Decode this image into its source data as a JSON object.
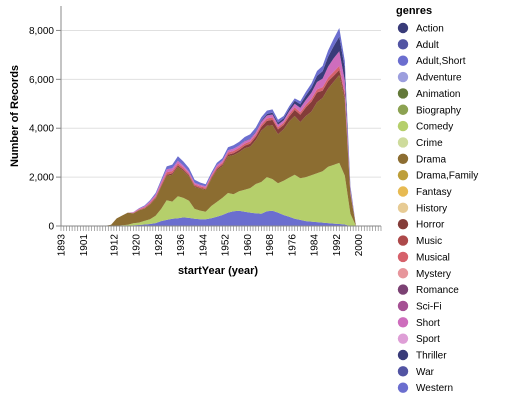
{
  "chart_data": {
    "type": "area",
    "stacked": true,
    "xlabel": "startYear (year)",
    "ylabel": "Number of Records",
    "xlim": [
      1893,
      2008
    ],
    "ylim": [
      0,
      9000
    ],
    "x_ticks": [
      1893,
      1901,
      1912,
      1920,
      1928,
      1936,
      1944,
      1952,
      1960,
      1968,
      1976,
      1984,
      1992,
      2000
    ],
    "y_ticks": [
      0,
      2000,
      4000,
      6000,
      8000
    ],
    "y_tick_labels": [
      "0",
      "2,000",
      "4,000",
      "6,000",
      "8,000"
    ],
    "grid": true,
    "legend_title": "genres",
    "legend_position": "right",
    "x": [
      1893,
      1905,
      1909,
      1911,
      1913,
      1915,
      1917,
      1919,
      1921,
      1923,
      1925,
      1927,
      1929,
      1931,
      1933,
      1935,
      1937,
      1939,
      1941,
      1943,
      1945,
      1947,
      1949,
      1951,
      1953,
      1955,
      1957,
      1959,
      1961,
      1963,
      1965,
      1967,
      1969,
      1971,
      1973,
      1975,
      1977,
      1979,
      1981,
      1983,
      1985,
      1987,
      1989,
      1991,
      1993,
      1995,
      1997,
      1999,
      2001,
      2003
    ],
    "series": [
      {
        "name": "Action",
        "color": "#393b79",
        "values": [
          0,
          0,
          0,
          0,
          0,
          0,
          0,
          0,
          0,
          0,
          0,
          0,
          0,
          0,
          0,
          0,
          0,
          0,
          0,
          0,
          0,
          0,
          0,
          0,
          0,
          0,
          0,
          0,
          0,
          0,
          0,
          0,
          0,
          0,
          0,
          0,
          0,
          0,
          0,
          0,
          0,
          0,
          0,
          0,
          0,
          0,
          0,
          0,
          0,
          0
        ]
      },
      {
        "name": "Adult",
        "color": "#5254a3",
        "values": [
          0,
          0,
          0,
          0,
          0,
          0,
          0,
          0,
          0,
          0,
          0,
          0,
          0,
          0,
          0,
          0,
          0,
          0,
          0,
          0,
          0,
          0,
          0,
          0,
          0,
          0,
          0,
          0,
          0,
          0,
          0,
          0,
          0,
          0,
          0,
          0,
          0,
          0,
          0,
          0,
          0,
          0,
          0,
          0,
          0,
          0,
          0,
          0,
          0,
          0
        ]
      },
      {
        "name": "Adult,Short",
        "color": "#6b6ecf",
        "values": [
          0,
          0,
          0,
          0,
          0,
          0,
          0,
          30,
          40,
          60,
          80,
          120,
          200,
          250,
          300,
          320,
          350,
          330,
          300,
          280,
          280,
          320,
          380,
          450,
          550,
          600,
          620,
          580,
          550,
          520,
          500,
          600,
          620,
          550,
          450,
          380,
          300,
          250,
          200,
          180,
          160,
          140,
          120,
          100,
          80,
          60,
          0,
          0,
          0,
          0
        ]
      },
      {
        "name": "Adventure",
        "color": "#9c9ede",
        "values": [
          0,
          0,
          0,
          0,
          0,
          0,
          0,
          0,
          0,
          0,
          0,
          0,
          0,
          0,
          0,
          0,
          0,
          0,
          0,
          0,
          0,
          0,
          0,
          0,
          0,
          0,
          0,
          0,
          0,
          0,
          0,
          0,
          0,
          0,
          0,
          0,
          0,
          0,
          0,
          0,
          0,
          0,
          0,
          0,
          0,
          0,
          0,
          0,
          0,
          0
        ]
      },
      {
        "name": "Animation",
        "color": "#637939",
        "values": [
          0,
          0,
          0,
          0,
          0,
          0,
          0,
          0,
          0,
          0,
          0,
          0,
          0,
          0,
          0,
          0,
          0,
          0,
          0,
          0,
          0,
          0,
          0,
          0,
          0,
          0,
          0,
          0,
          0,
          0,
          0,
          0,
          0,
          0,
          0,
          0,
          0,
          0,
          0,
          0,
          0,
          0,
          0,
          0,
          0,
          0,
          0,
          0,
          0,
          0
        ]
      },
      {
        "name": "Biography",
        "color": "#8ca252",
        "values": [
          0,
          0,
          0,
          0,
          0,
          0,
          0,
          0,
          0,
          0,
          0,
          0,
          0,
          0,
          0,
          0,
          0,
          0,
          0,
          0,
          0,
          0,
          0,
          0,
          0,
          0,
          0,
          0,
          0,
          0,
          0,
          0,
          0,
          0,
          0,
          0,
          0,
          0,
          0,
          0,
          0,
          0,
          0,
          0,
          0,
          0,
          0,
          0,
          0,
          0
        ]
      },
      {
        "name": "Comedy",
        "color": "#b5cf6b",
        "values": [
          0,
          0,
          0,
          0,
          10,
          30,
          50,
          80,
          100,
          150,
          200,
          300,
          500,
          800,
          700,
          900,
          800,
          700,
          400,
          350,
          300,
          500,
          600,
          700,
          800,
          700,
          800,
          900,
          1000,
          1200,
          1300,
          1400,
          1300,
          1200,
          1400,
          1600,
          1800,
          1700,
          1800,
          1900,
          2000,
          2100,
          2300,
          2400,
          2500,
          2000,
          500,
          0,
          0,
          0
        ]
      },
      {
        "name": "Crime",
        "color": "#cedb9c",
        "values": [
          0,
          0,
          0,
          0,
          0,
          0,
          0,
          0,
          0,
          0,
          0,
          0,
          0,
          0,
          0,
          0,
          0,
          0,
          0,
          0,
          0,
          0,
          0,
          0,
          0,
          0,
          0,
          0,
          0,
          0,
          0,
          0,
          0,
          0,
          0,
          0,
          0,
          0,
          0,
          0,
          0,
          0,
          0,
          0,
          0,
          0,
          0,
          0,
          0,
          0
        ]
      },
      {
        "name": "Drama",
        "color": "#8c6d31",
        "values": [
          0,
          0,
          10,
          50,
          300,
          400,
          500,
          400,
          500,
          500,
          600,
          700,
          900,
          1000,
          1100,
          1200,
          1100,
          1000,
          900,
          900,
          900,
          1100,
          1300,
          1300,
          1500,
          1600,
          1600,
          1700,
          1700,
          1800,
          2100,
          2100,
          2200,
          2000,
          2100,
          2300,
          2400,
          2300,
          2500,
          2600,
          2900,
          3000,
          3200,
          3400,
          3600,
          3100,
          800,
          0,
          0,
          0
        ]
      },
      {
        "name": "Drama,Family",
        "color": "#bd9e39",
        "values": [
          0,
          0,
          0,
          0,
          0,
          0,
          0,
          0,
          0,
          0,
          0,
          0,
          0,
          0,
          0,
          0,
          0,
          0,
          0,
          0,
          0,
          0,
          0,
          0,
          0,
          0,
          0,
          0,
          0,
          0,
          0,
          0,
          0,
          0,
          0,
          0,
          0,
          0,
          0,
          0,
          0,
          0,
          0,
          0,
          0,
          0,
          0,
          0,
          0,
          0
        ]
      },
      {
        "name": "Fantasy",
        "color": "#e7ba52",
        "values": [
          0,
          0,
          0,
          0,
          0,
          0,
          0,
          0,
          0,
          0,
          0,
          0,
          0,
          0,
          0,
          0,
          0,
          0,
          0,
          0,
          0,
          0,
          0,
          0,
          0,
          0,
          0,
          0,
          0,
          0,
          0,
          0,
          0,
          0,
          0,
          0,
          0,
          0,
          0,
          0,
          0,
          0,
          0,
          0,
          0,
          0,
          0,
          0,
          0,
          0
        ]
      },
      {
        "name": "History",
        "color": "#e7cb94",
        "values": [
          0,
          0,
          0,
          0,
          0,
          0,
          0,
          0,
          0,
          0,
          0,
          0,
          0,
          0,
          0,
          0,
          0,
          0,
          0,
          0,
          0,
          0,
          0,
          0,
          0,
          0,
          0,
          0,
          0,
          0,
          0,
          0,
          0,
          0,
          0,
          0,
          0,
          0,
          0,
          0,
          0,
          0,
          0,
          0,
          0,
          0,
          0,
          0,
          0,
          0
        ]
      },
      {
        "name": "Horror",
        "color": "#843c39",
        "values": [
          0,
          0,
          0,
          0,
          0,
          0,
          0,
          10,
          10,
          20,
          20,
          30,
          40,
          50,
          50,
          60,
          50,
          40,
          40,
          30,
          30,
          40,
          50,
          60,
          70,
          80,
          90,
          100,
          120,
          130,
          150,
          200,
          220,
          200,
          180,
          200,
          250,
          300,
          350,
          400,
          400,
          300,
          300,
          250,
          200,
          150,
          30,
          0,
          0,
          0
        ]
      },
      {
        "name": "Music",
        "color": "#ad494a",
        "values": [
          0,
          0,
          0,
          0,
          0,
          0,
          0,
          0,
          0,
          0,
          0,
          0,
          0,
          0,
          0,
          0,
          0,
          0,
          0,
          0,
          0,
          0,
          0,
          0,
          0,
          0,
          0,
          0,
          0,
          0,
          0,
          0,
          0,
          0,
          0,
          0,
          0,
          0,
          0,
          0,
          0,
          0,
          0,
          0,
          0,
          0,
          0,
          0,
          0,
          0
        ]
      },
      {
        "name": "Musical",
        "color": "#d6616b",
        "values": [
          0,
          0,
          0,
          0,
          0,
          0,
          0,
          20,
          30,
          40,
          50,
          60,
          80,
          100,
          100,
          90,
          80,
          70,
          60,
          60,
          60,
          70,
          80,
          80,
          90,
          90,
          90,
          90,
          90,
          90,
          100,
          100,
          100,
          90,
          90,
          100,
          100,
          100,
          110,
          120,
          130,
          140,
          150,
          160,
          170,
          140,
          30,
          0,
          0,
          0
        ]
      },
      {
        "name": "Mystery",
        "color": "#e7969c",
        "values": [
          0,
          0,
          0,
          0,
          0,
          0,
          0,
          0,
          0,
          0,
          0,
          0,
          0,
          0,
          0,
          0,
          0,
          0,
          0,
          0,
          0,
          0,
          0,
          0,
          0,
          0,
          0,
          0,
          0,
          0,
          0,
          0,
          0,
          0,
          0,
          0,
          0,
          0,
          0,
          0,
          0,
          0,
          0,
          0,
          0,
          0,
          0,
          0,
          0,
          0
        ]
      },
      {
        "name": "Romance",
        "color": "#7b4173",
        "values": [
          0,
          0,
          0,
          0,
          0,
          0,
          0,
          0,
          0,
          0,
          0,
          0,
          0,
          0,
          0,
          0,
          0,
          0,
          0,
          0,
          0,
          0,
          0,
          0,
          0,
          0,
          0,
          0,
          0,
          0,
          0,
          0,
          0,
          0,
          0,
          0,
          0,
          0,
          0,
          0,
          0,
          0,
          0,
          0,
          0,
          0,
          0,
          0,
          0,
          0
        ]
      },
      {
        "name": "Sci-Fi",
        "color": "#a55194",
        "values": [
          0,
          0,
          0,
          0,
          0,
          0,
          0,
          0,
          0,
          0,
          0,
          0,
          0,
          0,
          0,
          0,
          0,
          0,
          0,
          0,
          0,
          0,
          0,
          0,
          0,
          0,
          0,
          0,
          0,
          0,
          0,
          0,
          0,
          0,
          0,
          0,
          0,
          0,
          0,
          0,
          0,
          0,
          0,
          0,
          0,
          0,
          0,
          0,
          0,
          0
        ]
      },
      {
        "name": "Short",
        "color": "#ce6dbd",
        "values": [
          0,
          0,
          0,
          0,
          0,
          0,
          0,
          20,
          30,
          40,
          60,
          80,
          100,
          120,
          110,
          100,
          90,
          80,
          70,
          60,
          60,
          70,
          80,
          80,
          90,
          90,
          90,
          100,
          100,
          100,
          110,
          120,
          120,
          110,
          100,
          120,
          150,
          180,
          200,
          250,
          300,
          350,
          450,
          550,
          600,
          500,
          100,
          0,
          0,
          0
        ]
      },
      {
        "name": "Sport",
        "color": "#de9ed6",
        "values": [
          0,
          0,
          0,
          0,
          0,
          0,
          0,
          0,
          0,
          0,
          0,
          0,
          0,
          0,
          0,
          0,
          0,
          0,
          0,
          0,
          0,
          0,
          0,
          0,
          0,
          0,
          0,
          0,
          0,
          0,
          0,
          0,
          0,
          0,
          0,
          0,
          0,
          0,
          0,
          0,
          0,
          0,
          0,
          0,
          0,
          0,
          0,
          0,
          0,
          0
        ]
      },
      {
        "name": "Thriller",
        "color": "#393b79",
        "values": [
          0,
          0,
          0,
          0,
          0,
          0,
          0,
          0,
          0,
          0,
          0,
          0,
          0,
          0,
          0,
          0,
          0,
          0,
          0,
          0,
          0,
          0,
          0,
          0,
          0,
          0,
          0,
          10,
          20,
          30,
          40,
          60,
          80,
          80,
          80,
          100,
          120,
          150,
          180,
          200,
          250,
          300,
          400,
          500,
          600,
          500,
          100,
          0,
          0,
          0
        ]
      },
      {
        "name": "War",
        "color": "#5254a3",
        "values": [
          0,
          0,
          0,
          0,
          0,
          0,
          0,
          0,
          0,
          0,
          0,
          0,
          0,
          0,
          0,
          0,
          0,
          0,
          0,
          0,
          0,
          0,
          0,
          0,
          0,
          0,
          0,
          0,
          0,
          0,
          0,
          0,
          0,
          0,
          0,
          0,
          0,
          0,
          0,
          0,
          0,
          0,
          0,
          0,
          0,
          0,
          0,
          0,
          0,
          0
        ]
      },
      {
        "name": "Western",
        "color": "#6b6ecf",
        "values": [
          0,
          0,
          0,
          0,
          0,
          0,
          0,
          10,
          20,
          30,
          40,
          60,
          80,
          120,
          150,
          180,
          170,
          150,
          120,
          100,
          80,
          80,
          90,
          100,
          120,
          140,
          150,
          160,
          170,
          160,
          150,
          140,
          130,
          120,
          100,
          100,
          100,
          120,
          150,
          180,
          200,
          220,
          260,
          300,
          350,
          300,
          80,
          0,
          0,
          0
        ]
      }
    ]
  }
}
